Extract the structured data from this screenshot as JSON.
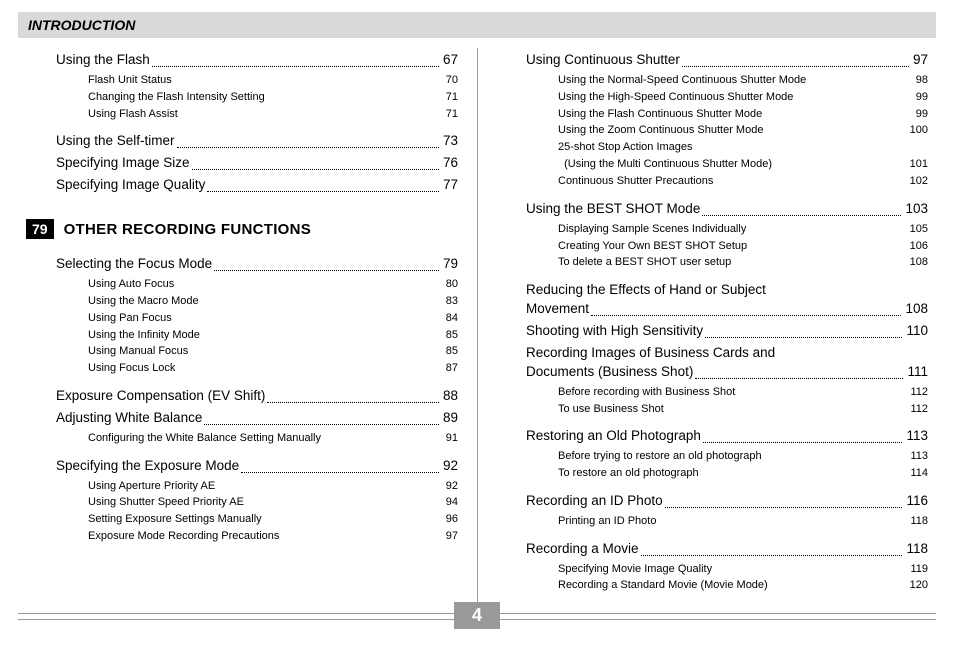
{
  "header": "INTRODUCTION",
  "pageNumber": "4",
  "section": {
    "num": "79",
    "title": "OTHER RECORDING FUNCTIONS"
  },
  "left": {
    "pre": [
      {
        "label": "Using the Flash",
        "page": "67",
        "subs": [
          {
            "label": "Flash Unit Status",
            "page": "70"
          },
          {
            "label": "Changing the Flash Intensity Setting",
            "page": "71"
          },
          {
            "label": "Using Flash Assist",
            "page": "71"
          }
        ]
      },
      {
        "label": "Using the Self-timer",
        "page": "73",
        "subs": []
      },
      {
        "label": "Specifying Image Size",
        "page": "76",
        "subs": []
      },
      {
        "label": "Specifying Image Quality",
        "page": "77",
        "subs": []
      }
    ],
    "post": [
      {
        "label": "Selecting the Focus Mode",
        "page": "79",
        "subs": [
          {
            "label": "Using Auto Focus",
            "page": "80"
          },
          {
            "label": "Using the Macro Mode",
            "page": "83"
          },
          {
            "label": "Using Pan Focus",
            "page": "84"
          },
          {
            "label": "Using the Infinity Mode",
            "page": "85"
          },
          {
            "label": "Using Manual Focus",
            "page": "85"
          },
          {
            "label": "Using Focus Lock",
            "page": "87"
          }
        ]
      },
      {
        "label": "Exposure Compensation (EV Shift)",
        "page": "88",
        "subs": []
      },
      {
        "label": "Adjusting White Balance",
        "page": "89",
        "subs": [
          {
            "label": "Configuring the White Balance Setting Manually",
            "page": "91"
          }
        ]
      },
      {
        "label": "Specifying the Exposure Mode",
        "page": "92",
        "subs": [
          {
            "label": "Using Aperture Priority AE",
            "page": "92"
          },
          {
            "label": "Using Shutter Speed Priority AE",
            "page": "94"
          },
          {
            "label": "Setting Exposure Settings Manually",
            "page": "96"
          },
          {
            "label": "Exposure Mode Recording Precautions",
            "page": "97"
          }
        ]
      }
    ]
  },
  "right": [
    {
      "label": "Using Continuous Shutter",
      "page": "97",
      "subs": [
        {
          "label": "Using the Normal-Speed Continuous Shutter Mode",
          "page": "98"
        },
        {
          "label": "Using the High-Speed Continuous Shutter Mode",
          "page": "99"
        },
        {
          "label": "Using the Flash Continuous Shutter Mode",
          "page": "99"
        },
        {
          "label": "Using the Zoom Continuous Shutter Mode",
          "page": "100"
        },
        {
          "label": "25-shot Stop Action Images",
          "page": ""
        },
        {
          "label": "  (Using the Multi Continuous Shutter Mode)",
          "page": "101"
        },
        {
          "label": "Continuous Shutter Precautions",
          "page": "102"
        }
      ]
    },
    {
      "label": "Using the BEST SHOT Mode",
      "page": "103",
      "subs": [
        {
          "label": "Displaying Sample Scenes Individually",
          "page": "105"
        },
        {
          "label": "Creating Your Own BEST SHOT Setup",
          "page": "106"
        },
        {
          "label": "To delete a BEST SHOT user setup",
          "page": "108"
        }
      ]
    },
    {
      "wrap": true,
      "label1": "Reducing the Effects of Hand or Subject",
      "label2": "Movement",
      "page": "108",
      "subs": []
    },
    {
      "label": "Shooting with High Sensitivity",
      "page": "110",
      "subs": []
    },
    {
      "wrap": true,
      "label1": "Recording Images of Business Cards and",
      "label2": "Documents (Business Shot)",
      "page": "111",
      "subs": [
        {
          "label": "Before recording with Business Shot",
          "page": "112"
        },
        {
          "label": "To use Business Shot",
          "page": "112"
        }
      ]
    },
    {
      "label": "Restoring an Old Photograph",
      "page": "113",
      "subs": [
        {
          "label": "Before trying to restore an old photograph",
          "page": "113"
        },
        {
          "label": "To restore an old photograph",
          "page": "114"
        }
      ]
    },
    {
      "label": "Recording an ID Photo",
      "page": "116",
      "subs": [
        {
          "label": "Printing an ID Photo",
          "page": "118"
        }
      ]
    },
    {
      "label": "Recording a Movie",
      "page": "118",
      "subs": [
        {
          "label": "Specifying Movie Image Quality",
          "page": "119"
        },
        {
          "label": "Recording a Standard Movie (Movie Mode)",
          "page": "120"
        }
      ]
    }
  ]
}
